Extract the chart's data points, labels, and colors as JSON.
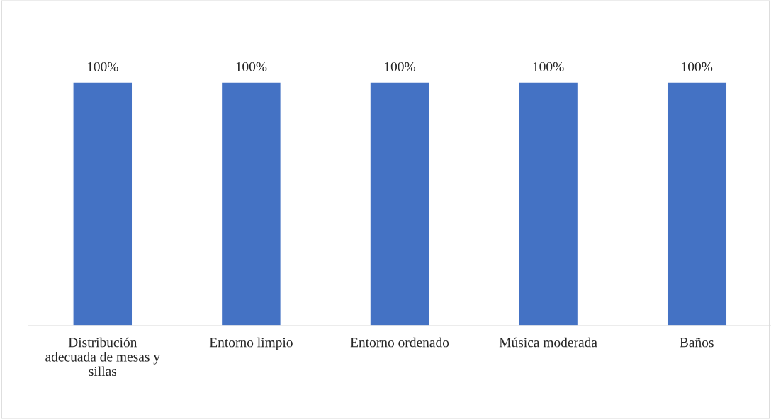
{
  "chart_data": {
    "type": "bar",
    "categories": [
      "Distribución\nadecuada de mesas y\nsillas",
      "Entorno limpio",
      "Entorno ordenado",
      "Música moderada",
      "Baños"
    ],
    "values": [
      100,
      100,
      100,
      100,
      100
    ],
    "color": "#4472c4",
    "value_labels": [
      "100%",
      "100%",
      "100%",
      "100%",
      "100%"
    ],
    "grid": false,
    "legend": false,
    "tick_labels": "x"
  }
}
